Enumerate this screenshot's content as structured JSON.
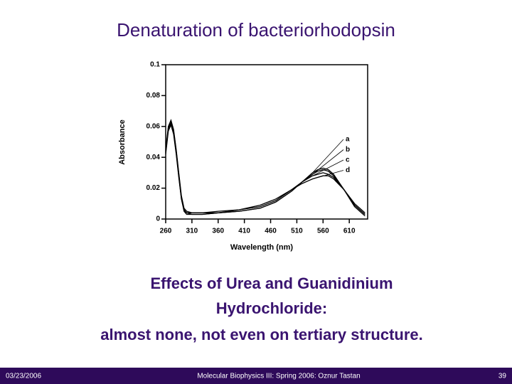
{
  "title": "Denaturation of bacteriorhodopsin",
  "chart_data": {
    "type": "line",
    "x_label": "Wavelength (nm)",
    "y_label": "Absorbance",
    "x": [
      260,
      265,
      270,
      275,
      280,
      285,
      290,
      295,
      300,
      310,
      330,
      360,
      400,
      440,
      470,
      500,
      520,
      540,
      550,
      560,
      570,
      580,
      600,
      620,
      640
    ],
    "series": [
      {
        "name": "a",
        "color": "#000000",
        "values": [
          0.045,
          0.06,
          0.064,
          0.058,
          0.045,
          0.03,
          0.015,
          0.007,
          0.005,
          0.004,
          0.004,
          0.004,
          0.005,
          0.007,
          0.011,
          0.018,
          0.024,
          0.03,
          0.032,
          0.033,
          0.032,
          0.029,
          0.019,
          0.009,
          0.003
        ]
      },
      {
        "name": "b",
        "color": "#000000",
        "values": [
          0.044,
          0.059,
          0.063,
          0.057,
          0.044,
          0.029,
          0.014,
          0.006,
          0.004,
          0.003,
          0.003,
          0.004,
          0.005,
          0.007,
          0.011,
          0.018,
          0.024,
          0.029,
          0.031,
          0.032,
          0.031,
          0.028,
          0.019,
          0.008,
          0.002
        ]
      },
      {
        "name": "c",
        "color": "#000000",
        "values": [
          0.043,
          0.058,
          0.062,
          0.056,
          0.043,
          0.028,
          0.013,
          0.006,
          0.004,
          0.004,
          0.004,
          0.005,
          0.006,
          0.008,
          0.012,
          0.019,
          0.024,
          0.028,
          0.029,
          0.03,
          0.029,
          0.027,
          0.019,
          0.009,
          0.003
        ]
      },
      {
        "name": "d",
        "color": "#000000",
        "values": [
          0.042,
          0.057,
          0.061,
          0.055,
          0.042,
          0.027,
          0.013,
          0.005,
          0.003,
          0.003,
          0.003,
          0.004,
          0.006,
          0.009,
          0.013,
          0.019,
          0.023,
          0.026,
          0.027,
          0.028,
          0.028,
          0.026,
          0.019,
          0.01,
          0.004
        ]
      }
    ],
    "xlim": [
      260,
      645
    ],
    "xticks": [
      260,
      310,
      360,
      410,
      460,
      510,
      560,
      610
    ],
    "ylim": [
      0,
      0.1
    ],
    "yticks": [
      0,
      0.02,
      0.04,
      0.06,
      0.08,
      0.1
    ]
  },
  "caption": [
    "Effects of Urea and Guanidinium",
    "Hydrochloride:",
    "almost none, not even on tertiary structure."
  ],
  "footer": {
    "date": "03/23/2006",
    "text": "Molecular Biophysics III: Spring 2006: Oznur Tastan",
    "page": "39"
  }
}
